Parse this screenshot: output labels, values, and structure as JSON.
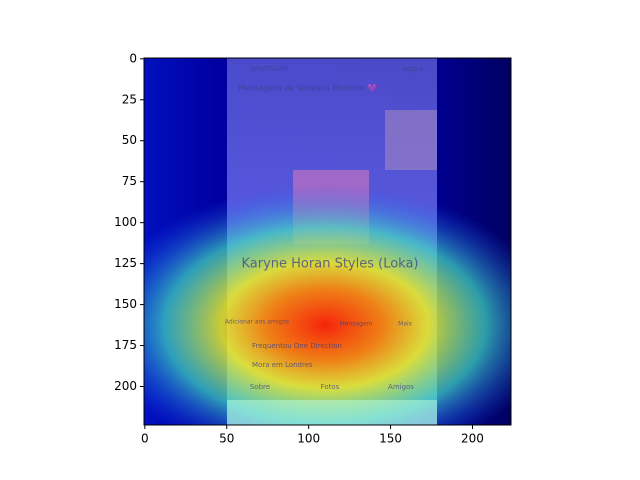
{
  "chart_data": {
    "type": "image",
    "xlim": [
      -0.5,
      223.5
    ],
    "ylim": [
      223.5,
      -0.5
    ],
    "xticks": [
      0,
      50,
      100,
      150,
      200
    ],
    "yticks": [
      0,
      25,
      50,
      75,
      100,
      125,
      150,
      175,
      200
    ],
    "cmap": "jet",
    "annotations": [
      "WHATSAPP",
      "agora",
      "Mensagem de Vanessa Moamor 💜",
      "Karyne Horan Styles (Loka)",
      "Adicionar aos amigos",
      "Mensagem",
      "Mais",
      "Frequentou One Direction",
      "Mora em Londres",
      "Sobre",
      "Fotos",
      "Amigos"
    ]
  }
}
